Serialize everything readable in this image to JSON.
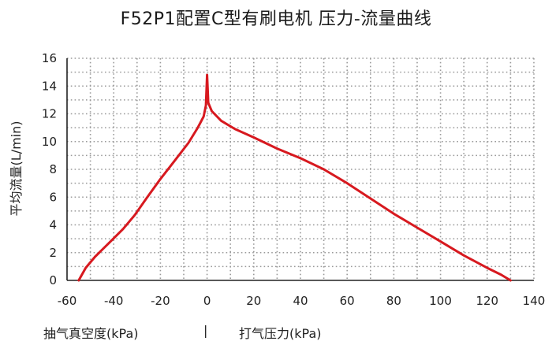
{
  "chart_data": {
    "type": "line",
    "title": "F52P1配置C型有刷电机 压力-流量曲线",
    "ylabel": "平均流量(L/min)",
    "xlabel_left": "抽气真空度(kPa)",
    "xlabel_separator": "|",
    "xlabel_right": "打气压力(kPa)",
    "xlim": [
      -60,
      140
    ],
    "ylim": [
      0,
      16
    ],
    "x_ticks": [
      "-60",
      "-40",
      "-20",
      "0",
      "20",
      "40",
      "60",
      "80",
      "100",
      "120",
      "140"
    ],
    "y_ticks": [
      "0",
      "2",
      "4",
      "6",
      "8",
      "10",
      "12",
      "14",
      "16"
    ],
    "grid": true,
    "series": [
      {
        "color": "#d7191f",
        "x": [
          -55,
          -52,
          -48,
          -42,
          -36,
          -31,
          -26,
          -20,
          -14,
          -8,
          -4,
          -1.5,
          -0.5,
          0,
          0.5,
          2,
          6,
          12,
          20,
          30,
          40,
          50,
          60,
          70,
          80,
          90,
          100,
          110,
          120,
          126,
          130
        ],
        "y": [
          0,
          0.9,
          1.7,
          2.7,
          3.7,
          4.7,
          5.9,
          7.3,
          8.6,
          9.9,
          11.0,
          11.8,
          12.6,
          14.8,
          12.8,
          12.2,
          11.5,
          10.9,
          10.3,
          9.5,
          8.8,
          8.0,
          7.0,
          5.9,
          4.8,
          3.8,
          2.8,
          1.8,
          0.9,
          0.4,
          0
        ]
      }
    ],
    "colors": {
      "line": "#d7191f",
      "grid": "#9a9a9a",
      "axis": "#222222"
    }
  }
}
